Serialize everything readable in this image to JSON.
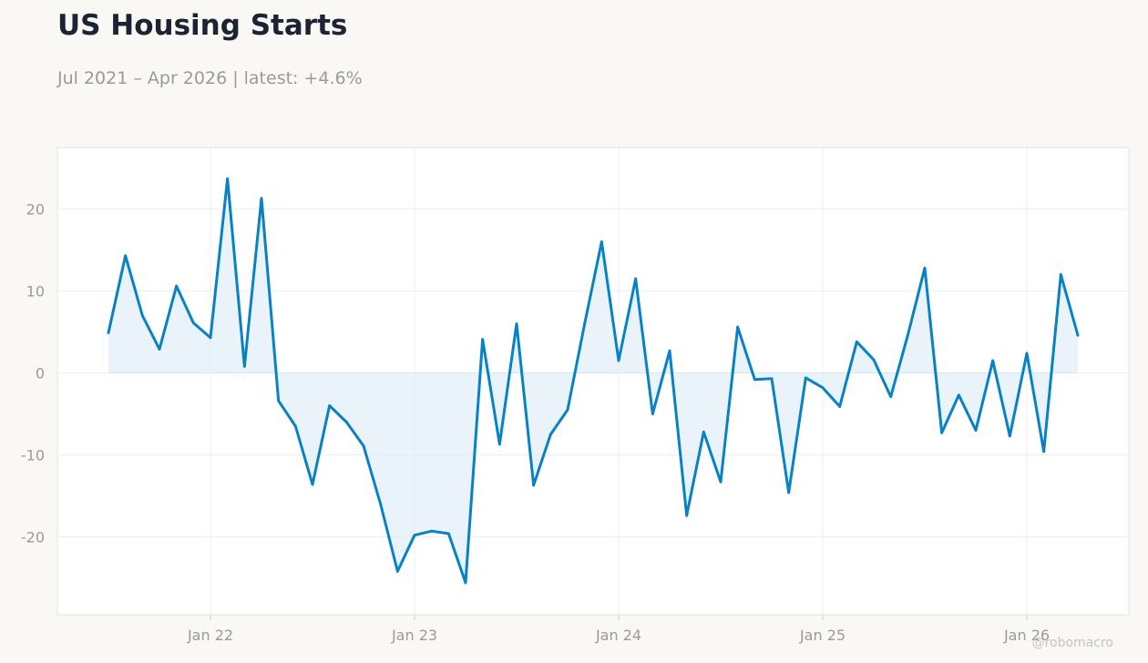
{
  "header": {
    "title": "US Housing Starts",
    "subtitle": "Jul 2021 – Apr 2026 | latest: +4.6%"
  },
  "credit": "@robomacro",
  "colors": {
    "line": "#0882c4",
    "fill": "#dcebf7",
    "background": "#f9f8f5",
    "plot_background": "#ffffff",
    "grid": "#efefef",
    "axis_text": "#9a9a9a",
    "title": "#1c2333"
  },
  "chart_data": {
    "type": "area",
    "x": [
      "2021-07",
      "2021-08",
      "2021-09",
      "2021-10",
      "2021-11",
      "2021-12",
      "2022-01",
      "2022-02",
      "2022-03",
      "2022-04",
      "2022-05",
      "2022-06",
      "2022-07",
      "2022-08",
      "2022-09",
      "2022-10",
      "2022-11",
      "2022-12",
      "2023-01",
      "2023-02",
      "2023-03",
      "2023-04",
      "2023-05",
      "2023-06",
      "2023-07",
      "2023-08",
      "2023-09",
      "2023-10",
      "2023-11",
      "2023-12",
      "2024-01",
      "2024-02",
      "2024-03",
      "2024-04",
      "2024-05",
      "2024-06",
      "2024-07",
      "2024-08",
      "2024-09",
      "2024-10",
      "2024-11",
      "2024-12",
      "2025-01",
      "2025-02",
      "2025-03",
      "2025-04",
      "2025-05",
      "2025-06",
      "2025-07",
      "2025-08",
      "2025-09",
      "2025-10",
      "2025-11",
      "2025-12",
      "2026-01",
      "2026-02",
      "2026-03",
      "2026-04"
    ],
    "series": [
      {
        "values": [
          4.9,
          14.3,
          7.0,
          2.9,
          10.6,
          6.1,
          4.3,
          23.7,
          0.8,
          21.3,
          -3.4,
          -6.5,
          -13.6,
          -4.0,
          -6.0,
          -8.9,
          -16.0,
          -24.2,
          -19.8,
          -19.3,
          -19.6,
          -25.6,
          4.1,
          -8.7,
          6.0,
          -13.7,
          -7.5,
          -4.5,
          6.0,
          16.0,
          1.5,
          11.5,
          -5.0,
          2.7,
          -17.4,
          -7.2,
          -13.3,
          5.6,
          -0.8,
          -0.7,
          -14.6,
          -0.6,
          -1.8,
          -4.1,
          3.8,
          1.6,
          -2.9,
          4.6,
          12.8,
          -7.3,
          -2.7,
          -7.0,
          1.5,
          -7.7,
          2.4,
          -9.6,
          12.0,
          4.6
        ]
      }
    ],
    "xtick_labels": [
      "Jan 22",
      "Jan 23",
      "Jan 24",
      "Jan 25",
      "Jan 26"
    ],
    "xtick_dates": [
      "2022-01",
      "2023-01",
      "2024-01",
      "2025-01",
      "2026-01"
    ],
    "yticks": [
      -20,
      -10,
      0,
      10,
      20
    ],
    "ylim": [
      -29.5,
      27.5
    ],
    "xlim": [
      "2021-04",
      "2026-07"
    ],
    "grid": true,
    "legend": false,
    "title": "US Housing Starts",
    "subtitle": "Jul 2021 – Apr 2026 | latest: +4.6%",
    "xlabel": "",
    "ylabel": ""
  }
}
